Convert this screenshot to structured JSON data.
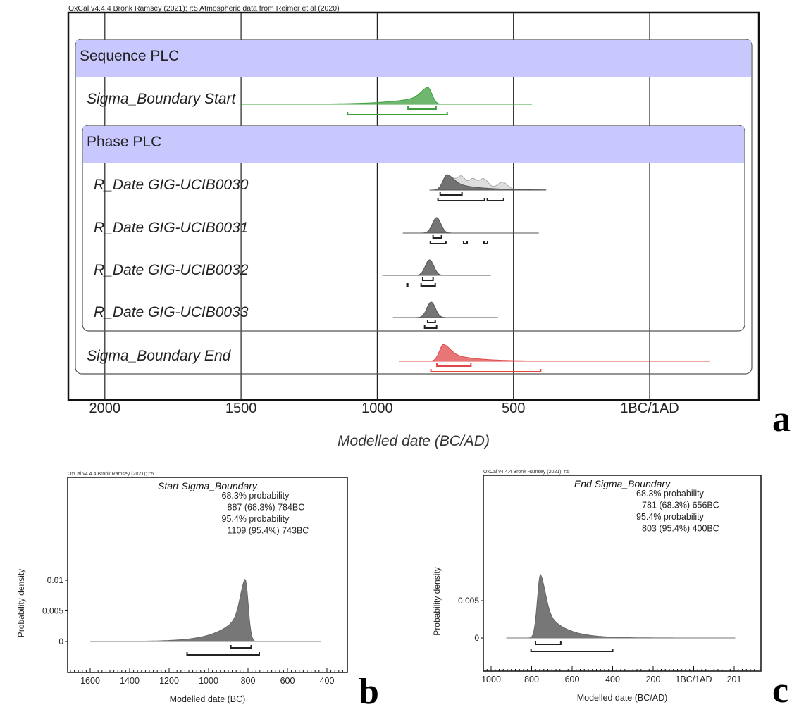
{
  "chart_data": [
    {
      "panel": "a",
      "type": "area",
      "header": "OxCal v4.4.4 Bronk Ramsey (2021); r:5 Atmospheric data from Reimer et al (2020)",
      "xlabel": "Modelled date (BC/AD)",
      "xticks": [
        "2000",
        "1500",
        "1000",
        "500",
        "1BC/1AD"
      ],
      "xtick_values_bc": [
        2000,
        1500,
        1000,
        500,
        0
      ],
      "xlim_bc": [
        2135,
        -400
      ],
      "grid": true,
      "groups": [
        {
          "label": "Sequence PLC",
          "band_color": "#c8c8ff"
        },
        {
          "label": "Phase PLC",
          "band_color": "#c8c8ff"
        }
      ],
      "rows": [
        {
          "label": "Sigma_Boundary Start",
          "color": "#3f9f3f",
          "span_bc": [
            1506,
            432
          ],
          "peak_bc": 815,
          "tail": "older",
          "ranges_68": [
            [
              887,
              784
            ]
          ],
          "ranges_95": [
            [
              1109,
              743
            ]
          ]
        },
        {
          "label": "R_Date GIG-UCIB0030",
          "color": "#555555",
          "span_bc": [
            808,
            381
          ],
          "peak_bc": 743,
          "tail": "younger",
          "ranges_68": [
            [
              769,
              689
            ]
          ],
          "ranges_95": [
            [
              777,
              606
            ],
            [
              596,
              536
            ]
          ]
        },
        {
          "label": "R_Date GIG-UCIB0031",
          "color": "#555555",
          "span_bc": [
            906,
            407
          ],
          "peak_bc": 782,
          "tail": "none",
          "ranges_68": [
            [
              795,
              764
            ]
          ],
          "ranges_95": [
            [
              805,
              748
            ],
            [
              683,
              670
            ],
            [
              608,
              595
            ]
          ]
        },
        {
          "label": "R_Date GIG-UCIB0032",
          "color": "#555555",
          "span_bc": [
            981,
            583
          ],
          "peak_bc": 808,
          "tail": "none",
          "ranges_68": [
            [
              833,
              795
            ]
          ],
          "ranges_95": [
            [
              891,
              888
            ],
            [
              839,
              787
            ]
          ]
        },
        {
          "label": "R_Date GIG-UCIB0033",
          "color": "#555555",
          "span_bc": [
            942,
            557
          ],
          "peak_bc": 802,
          "tail": "none",
          "ranges_68": [
            [
              815,
              787
            ]
          ],
          "ranges_95": [
            [
              826,
              782
            ]
          ]
        },
        {
          "label": "Sigma_Boundary End",
          "color": "#e04848",
          "span_bc": [
            921,
            -220
          ],
          "peak_bc": 756,
          "tail": "younger",
          "ranges_68": [
            [
              781,
              656
            ]
          ],
          "ranges_95": [
            [
              803,
              400
            ]
          ]
        }
      ]
    },
    {
      "panel": "b",
      "type": "area",
      "header": "OxCal v4.4.4 Bronk Ramsey (2021); r:5",
      "title": "Start Sigma_Boundary",
      "annotations": [
        "68.3% probability",
        "887 (68.3%) 784BC",
        "95.4% probability",
        "1109 (95.4%) 743BC"
      ],
      "xlabel": "Modelled date (BC)",
      "ylabel": "Probability density",
      "xticks": [
        "1600",
        "1400",
        "1200",
        "1000",
        "800",
        "600",
        "400"
      ],
      "yticks": [
        "0.01",
        "0.005",
        "0"
      ],
      "ytick_values": [
        0.01,
        0.005,
        0
      ],
      "span_bc": [
        1600,
        430
      ],
      "peak_bc": 815,
      "peak_density": 0.0102,
      "tail": "older",
      "ranges_68": [
        [
          887,
          784
        ]
      ],
      "ranges_95": [
        [
          1109,
          743
        ]
      ]
    },
    {
      "panel": "c",
      "type": "area",
      "header": "OxCal v4.4.4 Bronk Ramsey (2021); r:5",
      "title": "End Sigma_Boundary",
      "annotations": [
        "68.3% probability",
        "781 (68.3%) 656BC",
        "95.4% probability",
        "803 (95.4%) 400BC"
      ],
      "xlabel": "Modelled date (BC/AD)",
      "ylabel": "Probability density",
      "xticks": [
        "1000",
        "800",
        "600",
        "400",
        "200",
        "1BC/1AD",
        "201"
      ],
      "yticks": [
        "0.005",
        "0"
      ],
      "ytick_values": [
        0.005,
        0
      ],
      "span_bc": [
        925,
        -205
      ],
      "peak_bc": 756,
      "peak_density": 0.0085,
      "tail": "younger",
      "ranges_68": [
        [
          781,
          656
        ]
      ],
      "ranges_95": [
        [
          803,
          400
        ]
      ]
    }
  ],
  "panel_letters": [
    "a",
    "b",
    "c"
  ]
}
